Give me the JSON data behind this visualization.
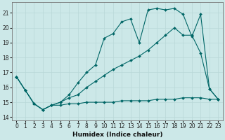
{
  "xlabel": "Humidex (Indice chaleur)",
  "background_color": "#cce8e8",
  "grid_color": "#aacccc",
  "line_color": "#006666",
  "xlim": [
    -0.5,
    23.5
  ],
  "ylim": [
    13.8,
    21.7
  ],
  "yticks": [
    14,
    15,
    16,
    17,
    18,
    19,
    20,
    21
  ],
  "xticks": [
    0,
    1,
    2,
    3,
    4,
    5,
    6,
    7,
    8,
    9,
    10,
    11,
    12,
    13,
    14,
    15,
    16,
    17,
    18,
    19,
    20,
    21,
    22,
    23
  ],
  "line1_x": [
    0,
    1,
    2,
    3,
    4,
    5,
    6,
    7,
    8,
    9,
    10,
    11,
    12,
    13,
    14,
    15,
    16,
    17,
    18,
    19,
    20,
    21,
    22,
    23
  ],
  "line1_y": [
    16.7,
    15.8,
    14.9,
    14.5,
    14.8,
    14.8,
    14.9,
    14.9,
    15.0,
    15.0,
    15.0,
    15.0,
    15.1,
    15.1,
    15.1,
    15.1,
    15.2,
    15.2,
    15.2,
    15.3,
    15.3,
    15.3,
    15.2,
    15.2
  ],
  "line2_x": [
    0,
    1,
    2,
    3,
    4,
    5,
    6,
    7,
    8,
    9,
    10,
    11,
    12,
    13,
    14,
    15,
    16,
    17,
    18,
    19,
    20,
    21,
    22,
    23
  ],
  "line2_y": [
    16.7,
    15.8,
    14.9,
    14.5,
    14.8,
    15.0,
    15.3,
    15.5,
    16.0,
    16.4,
    16.8,
    17.2,
    17.5,
    17.8,
    18.1,
    18.5,
    19.0,
    19.5,
    20.0,
    19.5,
    19.5,
    18.3,
    15.9,
    15.2
  ],
  "line3_x": [
    0,
    1,
    2,
    3,
    4,
    5,
    6,
    7,
    8,
    9,
    10,
    11,
    12,
    13,
    14,
    15,
    16,
    17,
    18,
    19,
    20,
    21,
    22,
    23
  ],
  "line3_y": [
    16.7,
    15.8,
    14.9,
    14.5,
    14.8,
    15.0,
    15.5,
    16.3,
    17.0,
    17.5,
    19.3,
    19.6,
    20.4,
    20.6,
    19.0,
    21.2,
    21.3,
    21.2,
    21.3,
    20.9,
    19.4,
    20.9,
    15.9,
    15.2
  ]
}
